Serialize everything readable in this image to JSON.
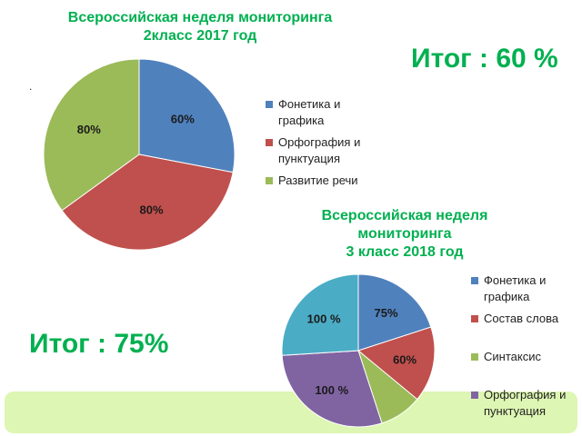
{
  "chart_data": [
    {
      "type": "pie",
      "title_lines": [
        "Всероссийская неделя мониторинга",
        "2класс  2017 год"
      ],
      "categories": [
        "Фонетика  и графика",
        "Орфография и пунктуация",
        "Развитие речи"
      ],
      "values": [
        28,
        37,
        35
      ],
      "labels": [
        "60%",
        "80%",
        "80%"
      ],
      "colors": [
        "#4f81bd",
        "#c0504d",
        "#9bbb59"
      ],
      "legend_lines": [
        [
          "Фонетика  и",
          "графика"
        ],
        [
          "Орфография и",
          "пунктуация"
        ],
        [
          "Развитие речи"
        ]
      ],
      "legend": "right"
    },
    {
      "type": "pie",
      "title_lines": [
        "Всероссийская неделя",
        "мониторинга",
        "3 класс 2018 год"
      ],
      "categories": [
        "Фонетика и графика",
        "Состав слова",
        "Синтаксис",
        "Орфография и пунктуация",
        ""
      ],
      "values": [
        20,
        16,
        9,
        29,
        26
      ],
      "labels": [
        "75%",
        "60%",
        "",
        "100 %",
        "100 %"
      ],
      "colors": [
        "#4f81bd",
        "#c0504d",
        "#9bbb59",
        "#8064a2",
        "#4bacc6"
      ],
      "legend_lines": [
        [
          "Фонетика и",
          "графика"
        ],
        [
          "Состав слова"
        ],
        [
          "Синтаксис"
        ],
        [
          "Орфография и",
          "пунктуация"
        ]
      ],
      "legend": "right"
    }
  ],
  "totals": {
    "grade2": "Итог : 60 %",
    "grade3": "Итог : 75%"
  },
  "decor": {
    "dot": "."
  }
}
